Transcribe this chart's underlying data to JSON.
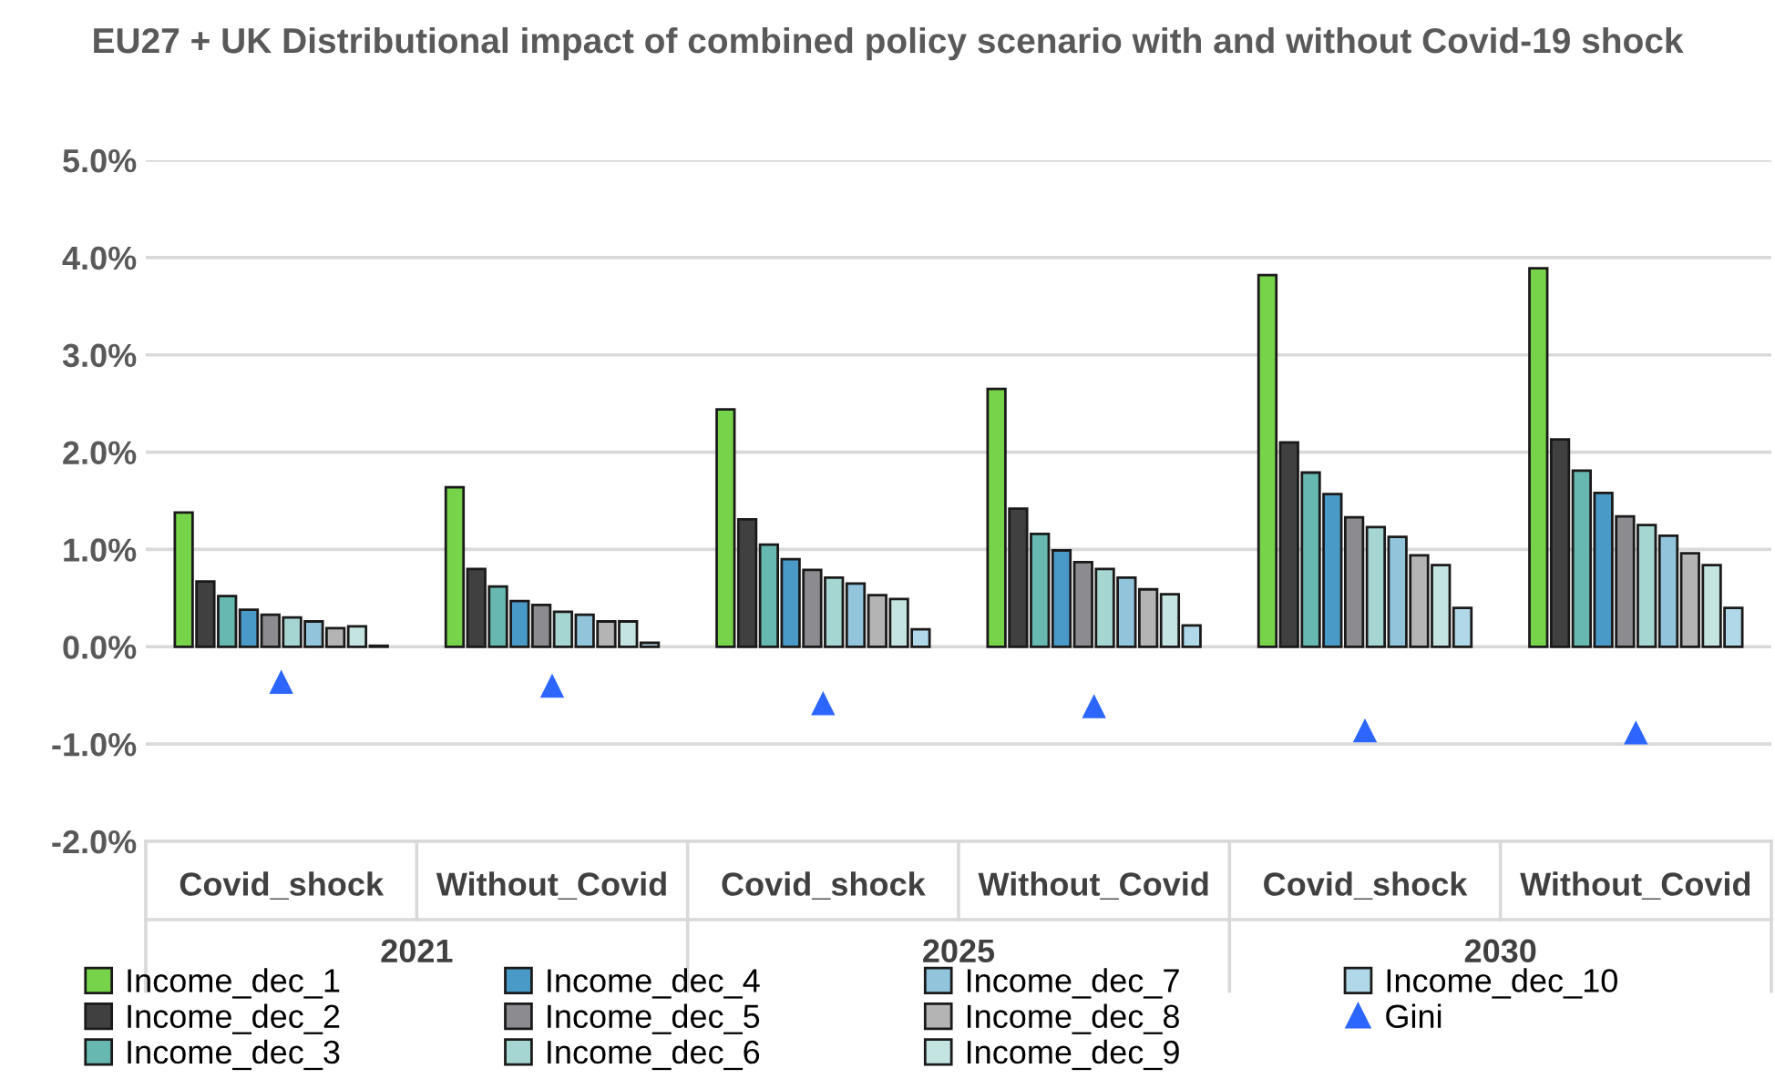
{
  "chart_data": {
    "type": "bar",
    "title": "EU27 + UK Distributional impact of combined policy scenario with and without Covid-19 shock",
    "categories": [
      "Covid_shock",
      "Without_Covid",
      "Covid_shock",
      "Without_Covid",
      "Covid_shock",
      "Without_Covid"
    ],
    "annotations": [
      "2021",
      "2025",
      "2030"
    ],
    "series": [
      {
        "name": "Income_dec_1",
        "color": "#77d44a",
        "values": [
          1.38,
          1.64,
          2.44,
          2.65,
          3.82,
          3.89
        ]
      },
      {
        "name": "Income_dec_2",
        "color": "#404040",
        "values": [
          0.67,
          0.8,
          1.31,
          1.42,
          2.1,
          2.13
        ]
      },
      {
        "name": "Income_dec_3",
        "color": "#66b8b0",
        "values": [
          0.52,
          0.62,
          1.05,
          1.16,
          1.79,
          1.81
        ]
      },
      {
        "name": "Income_dec_4",
        "color": "#4a9ac8",
        "values": [
          0.38,
          0.47,
          0.9,
          0.99,
          1.57,
          1.58
        ]
      },
      {
        "name": "Income_dec_5",
        "color": "#8c8c90",
        "values": [
          0.33,
          0.43,
          0.79,
          0.87,
          1.33,
          1.34
        ]
      },
      {
        "name": "Income_dec_6",
        "color": "#a6d6d2",
        "values": [
          0.3,
          0.36,
          0.71,
          0.8,
          1.23,
          1.25
        ]
      },
      {
        "name": "Income_dec_7",
        "color": "#92c4dc",
        "values": [
          0.26,
          0.33,
          0.65,
          0.71,
          1.13,
          1.14
        ]
      },
      {
        "name": "Income_dec_8",
        "color": "#b4b4b4",
        "values": [
          0.19,
          0.26,
          0.53,
          0.59,
          0.94,
          0.96
        ]
      },
      {
        "name": "Income_dec_9",
        "color": "#c4e4e2",
        "values": [
          0.21,
          0.26,
          0.49,
          0.54,
          0.84,
          0.84
        ]
      },
      {
        "name": "Income_dec_10",
        "color": "#b0d8e8",
        "values": [
          0.01,
          0.04,
          0.18,
          0.22,
          0.4,
          0.4
        ]
      },
      {
        "name": "Gini",
        "type": "scatter",
        "marker": "triangle",
        "color": "#2c66ff",
        "values": [
          -0.36,
          -0.4,
          -0.58,
          -0.61,
          -0.86,
          -0.88
        ]
      }
    ],
    "ylim": [
      -2,
      5
    ],
    "yticks": [
      {
        "value": -2,
        "label": "-2.0%"
      },
      {
        "value": -1,
        "label": "-1.0%"
      },
      {
        "value": 0,
        "label": "0.0%"
      },
      {
        "value": 1,
        "label": "1.0%"
      },
      {
        "value": 2,
        "label": "2.0%"
      },
      {
        "value": 3,
        "label": "3.0%"
      },
      {
        "value": 4,
        "label": "4.0%"
      },
      {
        "value": 5,
        "label": "5.0%"
      }
    ],
    "grid": "y",
    "legend": "bottom"
  }
}
